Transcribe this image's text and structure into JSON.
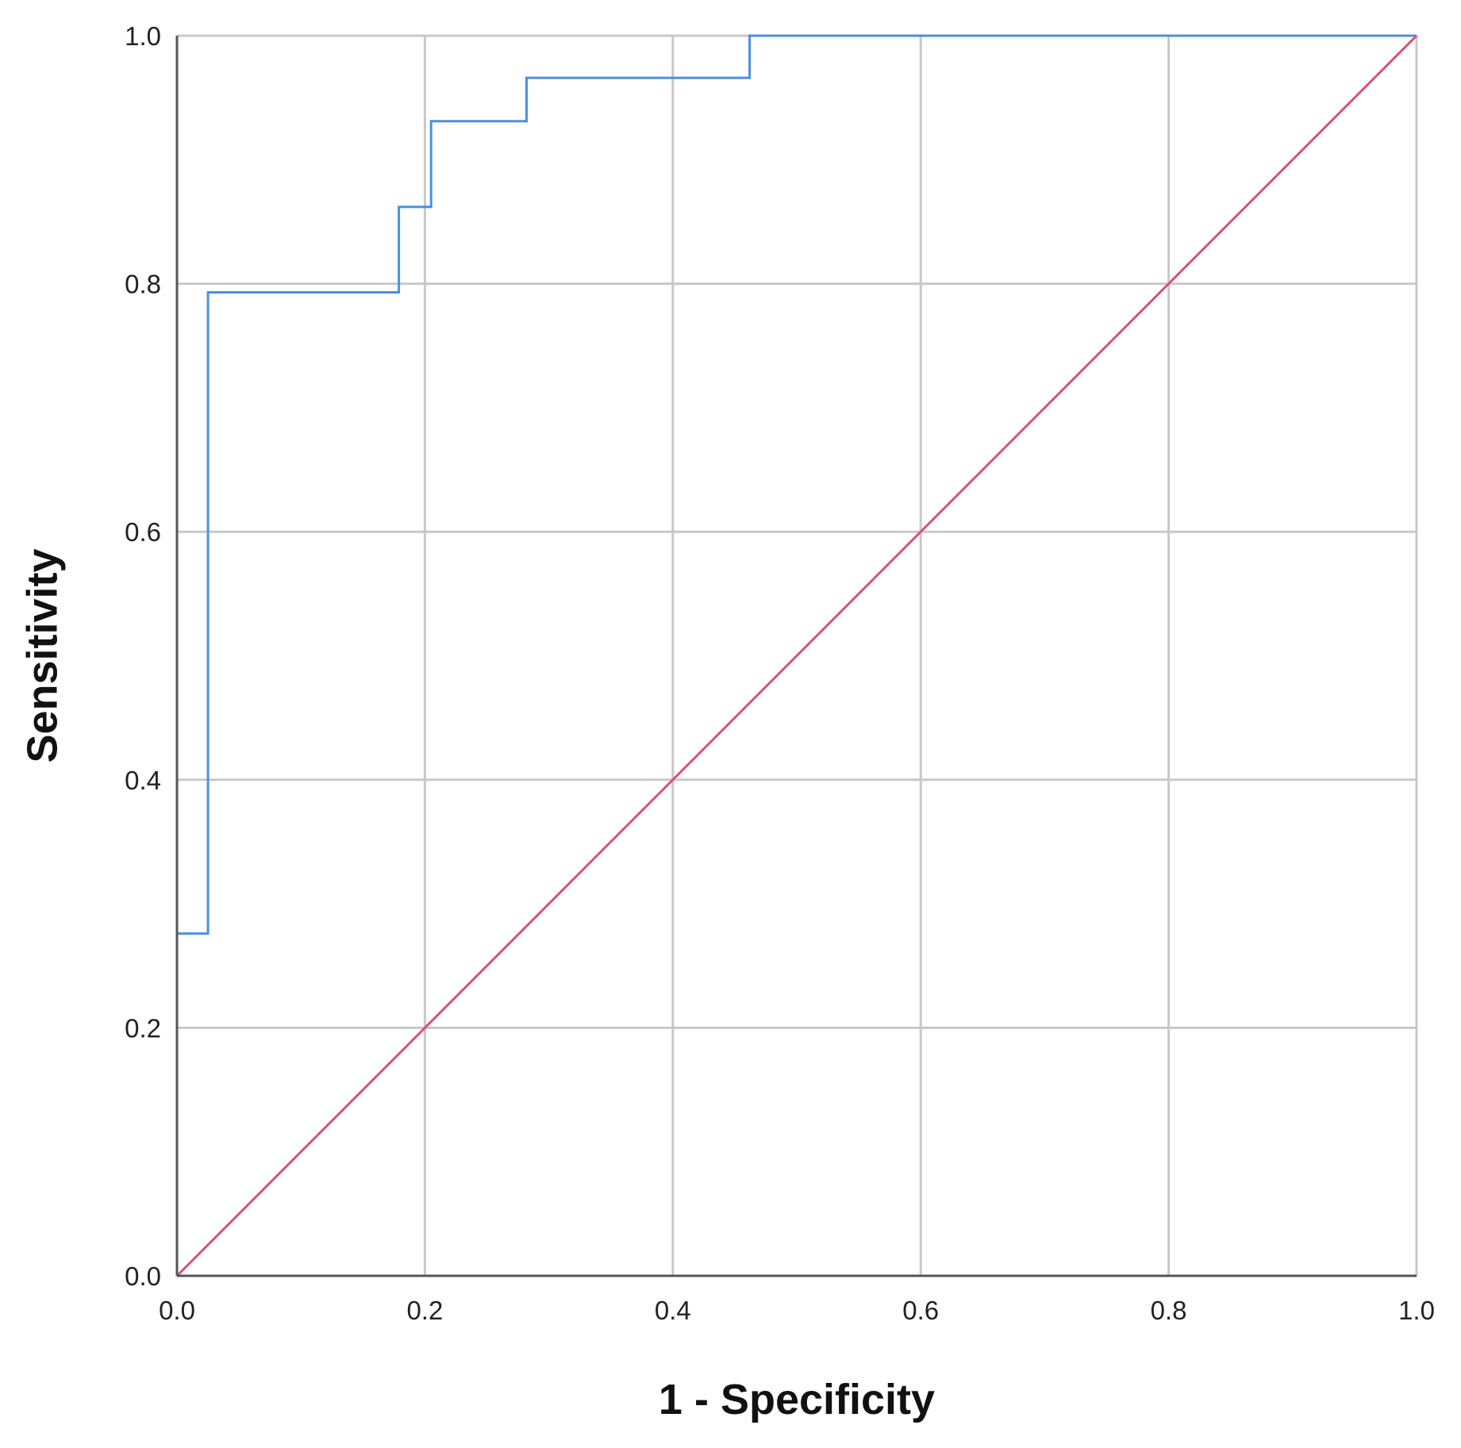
{
  "chart_data": {
    "type": "line",
    "xlabel": "1 - Specificity",
    "ylabel": "Sensitivity",
    "xlim": [
      0,
      1
    ],
    "ylim": [
      0,
      1
    ],
    "xticks": [
      "0.0",
      "0.2",
      "0.4",
      "0.6",
      "0.8",
      "1.0"
    ],
    "yticks": [
      "0.0",
      "0.2",
      "0.4",
      "0.6",
      "0.8",
      "1.0"
    ],
    "grid": true,
    "legend": "none",
    "series": [
      {
        "color": "#4a90e2",
        "style": "step",
        "points": [
          [
            0,
            0
          ],
          [
            0,
            0.276
          ],
          [
            0.025,
            0.276
          ],
          [
            0.025,
            0.793
          ],
          [
            0.179,
            0.793
          ],
          [
            0.179,
            0.862
          ],
          [
            0.205,
            0.862
          ],
          [
            0.205,
            0.931
          ],
          [
            0.282,
            0.931
          ],
          [
            0.282,
            0.966
          ],
          [
            0.462,
            0.966
          ],
          [
            0.462,
            1.0
          ],
          [
            1.0,
            1.0
          ]
        ]
      },
      {
        "color": "#e0506e",
        "style": "reference",
        "points": [
          [
            0,
            0
          ],
          [
            1,
            1
          ]
        ]
      }
    ]
  }
}
